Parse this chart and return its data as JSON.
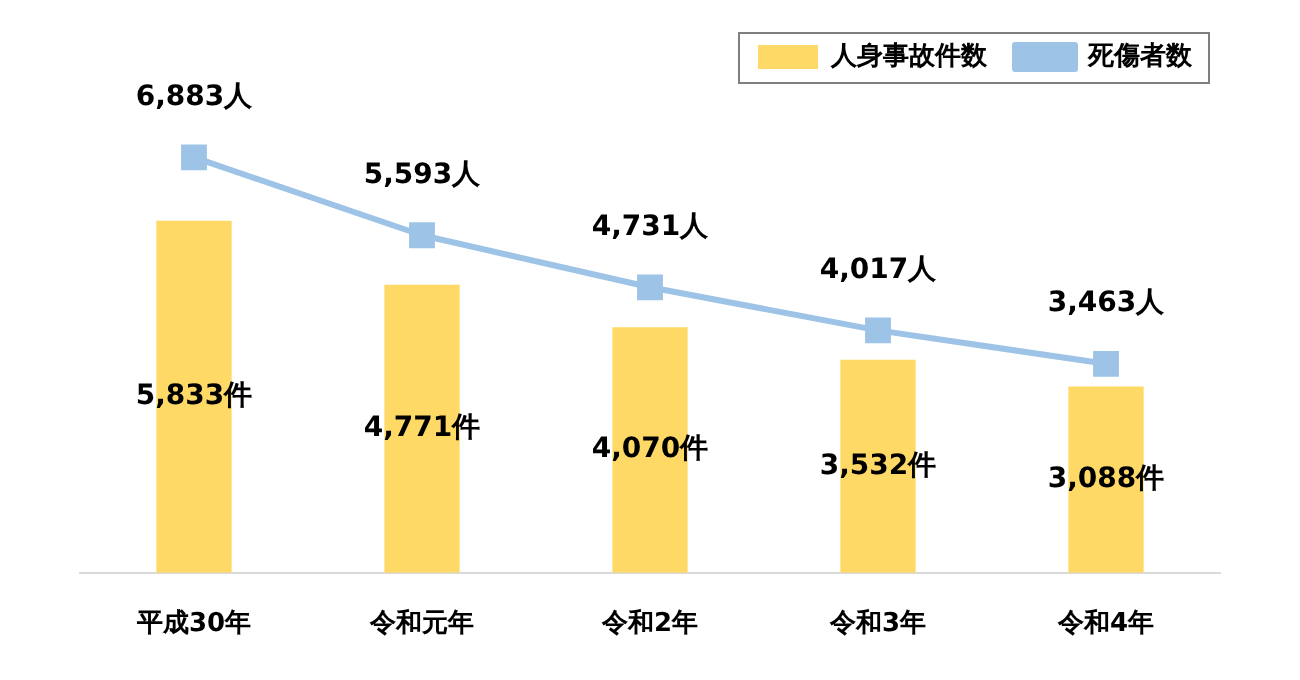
{
  "chart_data": {
    "type": "bar",
    "categories": [
      "平成30年",
      "令和元年",
      "令和2年",
      "令和3年",
      "令和4年"
    ],
    "series": [
      {
        "name": "人身事故件数",
        "color": "#ffd966",
        "values": [
          5833,
          4771,
          4070,
          3532,
          3088
        ],
        "value_labels": [
          "5,833件",
          "4,771件",
          "4,070件",
          "3,532件",
          "3,088件"
        ]
      },
      {
        "name": "死傷者数",
        "type": "line",
        "color": "#9dc3e6",
        "marker": "square",
        "values": [
          6883,
          5593,
          4731,
          4017,
          3463
        ],
        "value_labels": [
          "6,883人",
          "5,593人",
          "4,731人",
          "4,017人",
          "3,463人"
        ]
      }
    ],
    "tick_labels": "x",
    "grid": false,
    "legend": "top right"
  }
}
